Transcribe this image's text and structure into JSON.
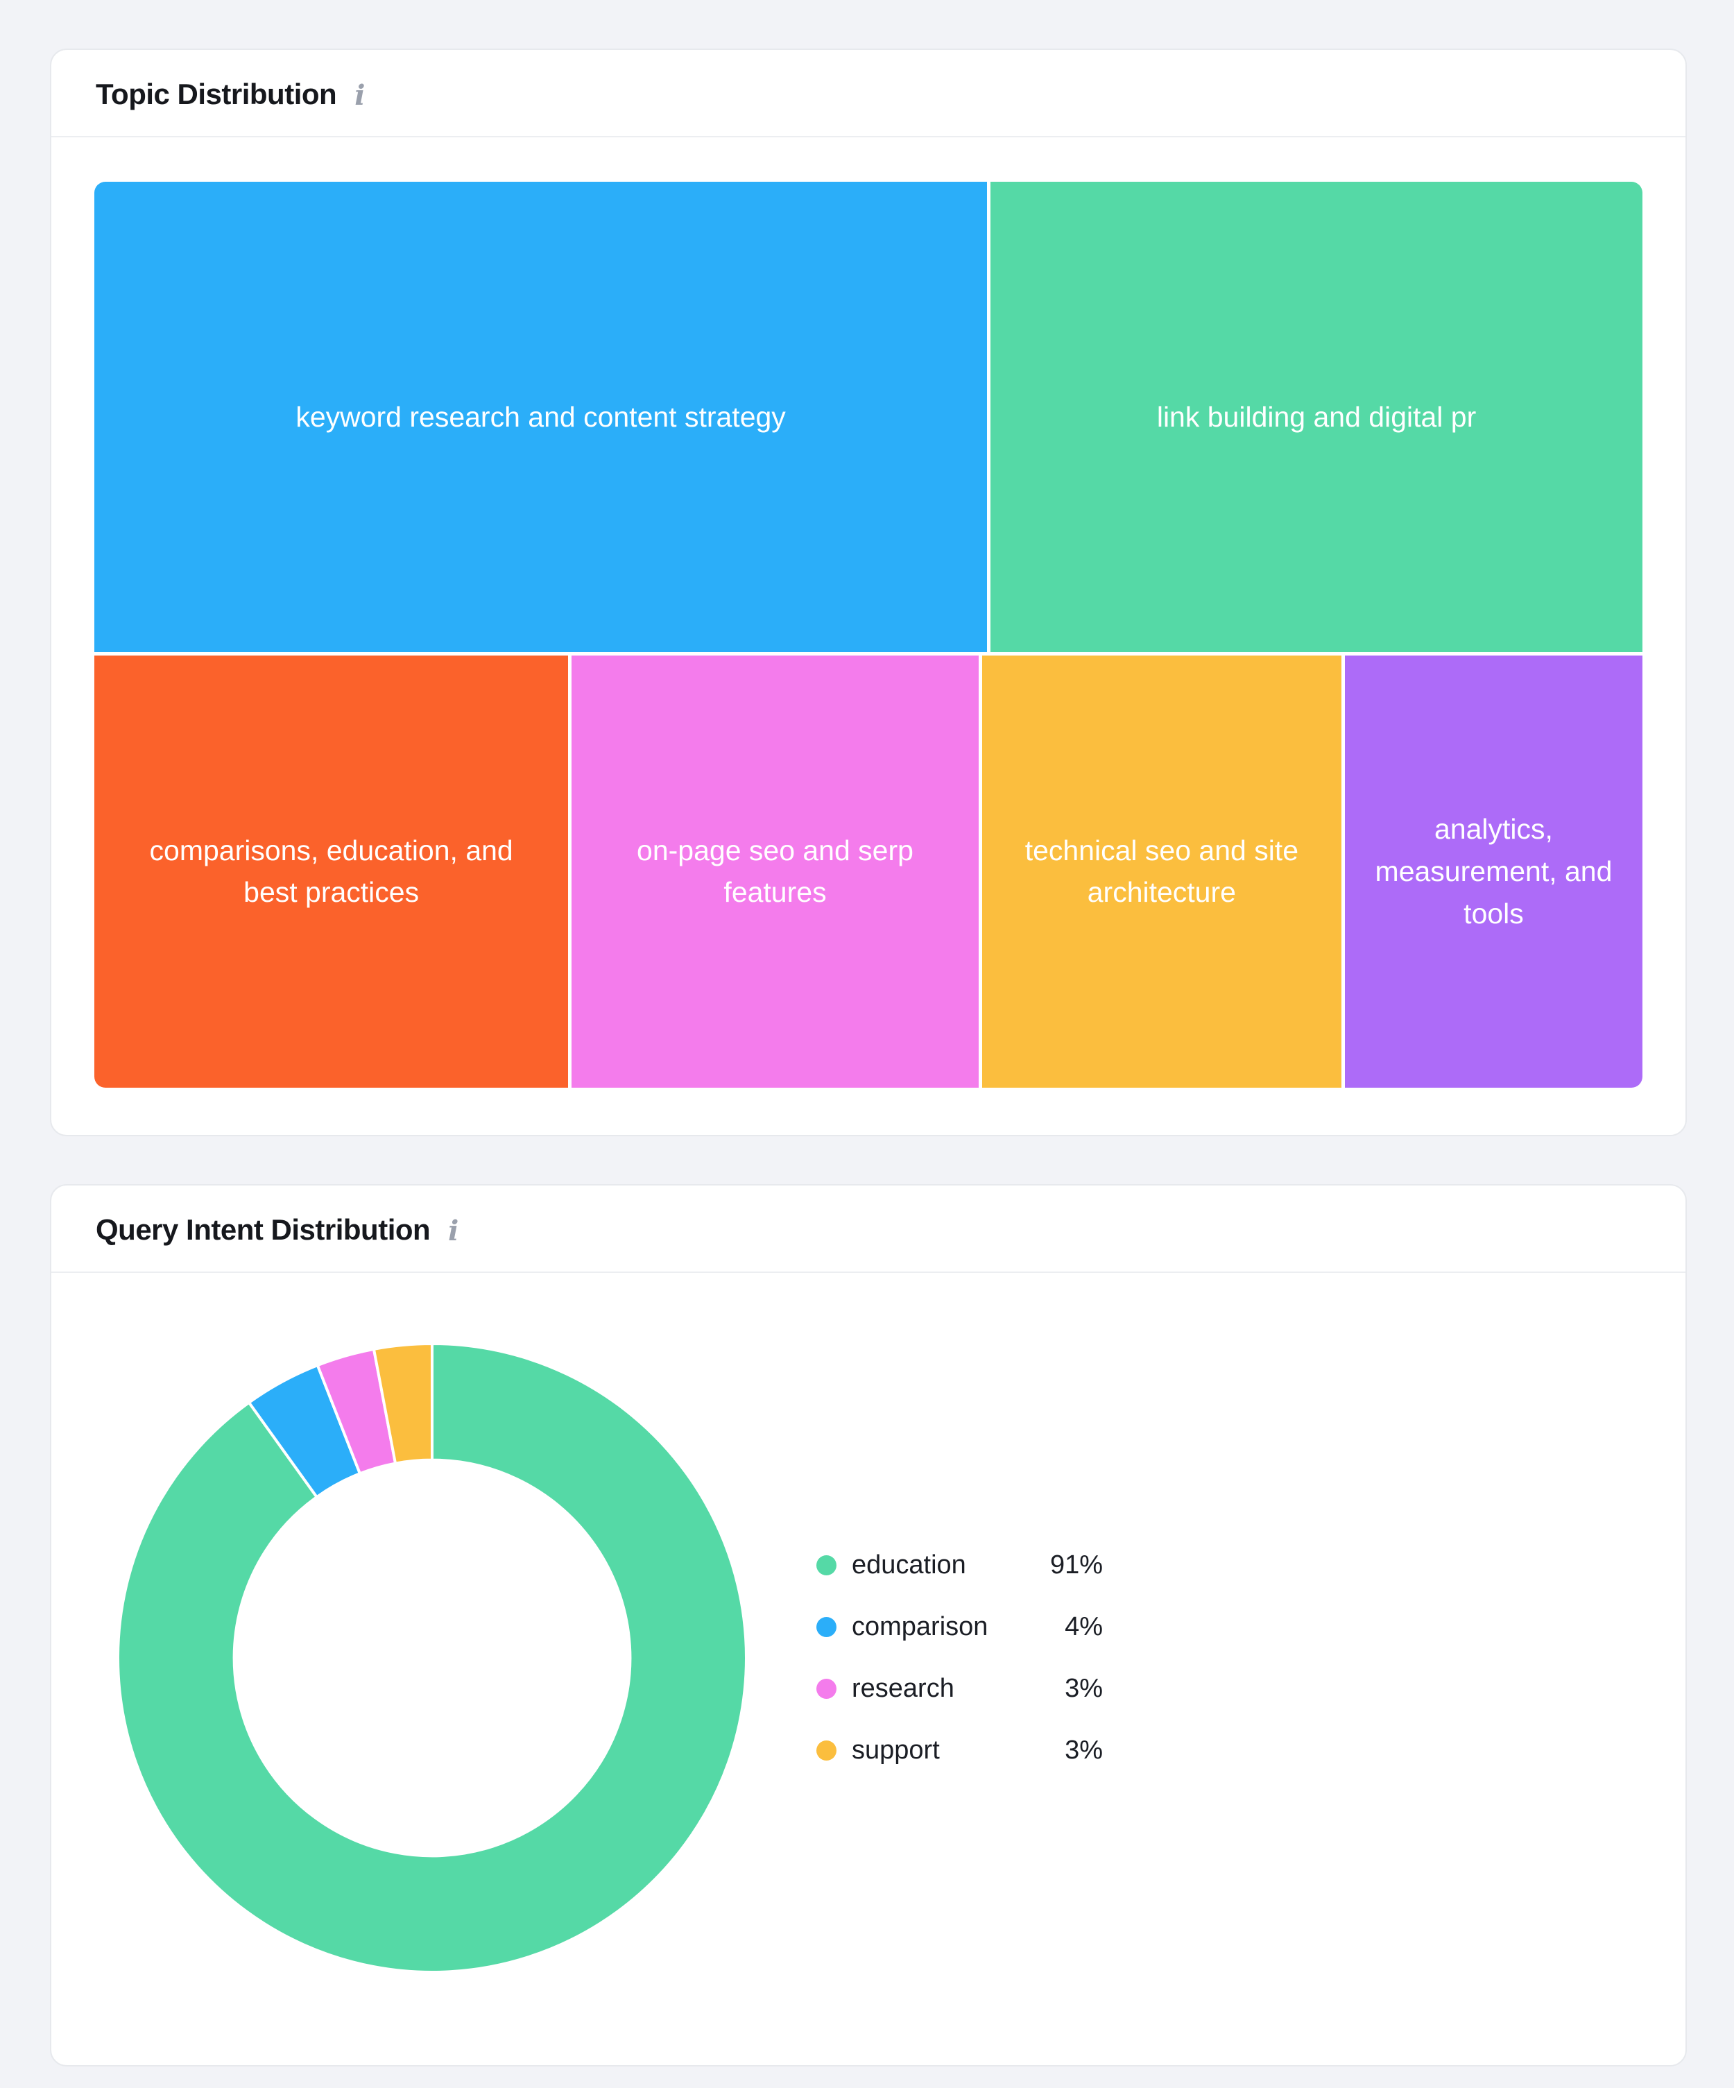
{
  "page": {
    "background": "#F2F3F7"
  },
  "topic_card": {
    "title": "Topic Distribution",
    "info_icon": "info-icon",
    "info_glyph": "i"
  },
  "intent_card": {
    "title": "Query Intent Distribution",
    "info_icon": "info-icon",
    "info_glyph": "i"
  },
  "colors": {
    "blue": "#2BAEF9",
    "green": "#55D9A6",
    "orange": "#FB622B",
    "pink": "#F47CEC",
    "yellow": "#FBBE3E",
    "purple": "#AD6BF8"
  },
  "chart_data": [
    {
      "type": "treemap",
      "title": "Topic Distribution",
      "rows": [
        {
          "name": "top",
          "height_pct": 59
        },
        {
          "name": "bottom",
          "height_pct": 41
        }
      ],
      "tiles": [
        {
          "label": "keyword research and content strategy",
          "color": "#2BAEF9",
          "row": "top",
          "width_pct": 58.4
        },
        {
          "label": "link building and digital pr",
          "color": "#55D9A6",
          "row": "top",
          "width_pct": 41.6
        },
        {
          "label": "comparisons, education, and best practices",
          "color": "#FB622B",
          "row": "bottom",
          "width_pct": 31.8
        },
        {
          "label": "on-page seo and serp features",
          "color": "#F47CEC",
          "row": "bottom",
          "width_pct": 26.7
        },
        {
          "label": "technical seo and site architecture",
          "color": "#FBBE3E",
          "row": "bottom",
          "width_pct": 23.1
        },
        {
          "label": "analytics, measurement, and tools",
          "color": "#AD6BF8",
          "row": "bottom",
          "width_pct": 18.4
        }
      ]
    },
    {
      "type": "donut",
      "title": "Query Intent Distribution",
      "slices": [
        {
          "label": "education",
          "pct": 91,
          "color": "#55D9A6"
        },
        {
          "label": "comparison",
          "pct": 4,
          "color": "#2BAEF9"
        },
        {
          "label": "research",
          "pct": 3,
          "color": "#F47CEC"
        },
        {
          "label": "support",
          "pct": 3,
          "color": "#FBBE3E"
        }
      ],
      "start_angle_deg": 0,
      "direction": "clockwise",
      "outer_radius": 453,
      "inner_radius_ratio": 0.63,
      "slice_gap_stroke": "#FFFFFF",
      "legend_position": "right",
      "pct_suffix": "%"
    }
  ]
}
